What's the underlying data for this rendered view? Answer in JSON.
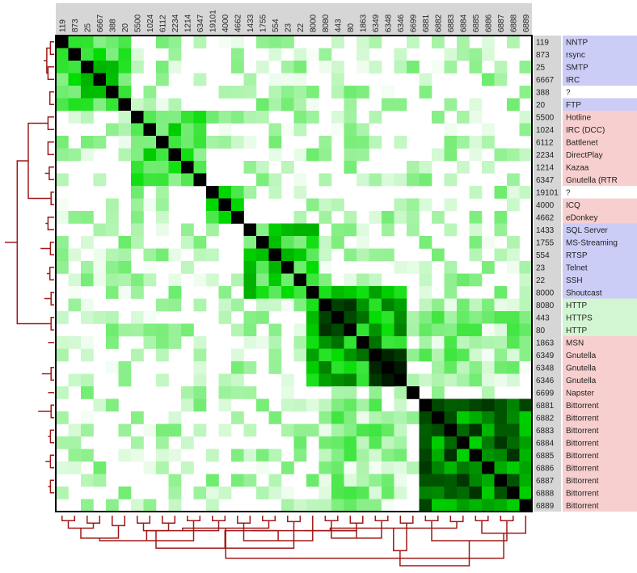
{
  "chart_data": {
    "type": "heatmap",
    "title": "",
    "xlabel": "",
    "ylabel": "",
    "colors": {
      "low": "#ffffff",
      "mid": "#00dd00",
      "high": "#000000",
      "dendrogram": "#a01818",
      "category_blue": "#cccdf6",
      "category_red": "#f8cfcf",
      "category_green": "#d2f5d2",
      "category_white": "#ffffff",
      "port_label_bg": "#d6d6d6"
    },
    "ports": [
      "119",
      "873",
      "25",
      "6667",
      "388",
      "20",
      "5500",
      "1024",
      "6112",
      "2234",
      "1214",
      "6347",
      "19101",
      "4000",
      "4662",
      "1433",
      "1755",
      "554",
      "23",
      "22",
      "8000",
      "8080",
      "443",
      "80",
      "1863",
      "6349",
      "6348",
      "6346",
      "6699",
      "6881",
      "6882",
      "6883",
      "6884",
      "6885",
      "6886",
      "6887",
      "6888",
      "6889"
    ],
    "protocols": [
      "NNTP",
      "rsync",
      "SMTP",
      "IRC",
      "?",
      "FTP",
      "Hotline",
      "IRC (DCC)",
      "Battlenet",
      "DirectPlay",
      "Kazaa",
      "Gnutella (RTR",
      "?",
      "ICQ",
      "eDonkey",
      "SQL Server",
      "MS-Streaming",
      "RTSP",
      "Telnet",
      "SSH",
      "Shoutcast",
      "HTTP",
      "HTTPS",
      "HTTP",
      "MSN",
      "Gnutella",
      "Gnutella",
      "Gnutella",
      "Napster",
      "Bittorrent",
      "Bittorrent",
      "Bittorrent",
      "Bittorrent",
      "Bittorrent",
      "Bittorrent",
      "Bittorrent",
      "Bittorrent",
      "Bittorrent"
    ],
    "protocol_category": [
      "blue",
      "blue",
      "blue",
      "blue",
      "white",
      "blue",
      "red",
      "red",
      "red",
      "red",
      "red",
      "red",
      "white",
      "red",
      "red",
      "blue",
      "blue",
      "blue",
      "blue",
      "blue",
      "blue",
      "green",
      "green",
      "green",
      "red",
      "red",
      "red",
      "red",
      "red",
      "red",
      "red",
      "red",
      "red",
      "red",
      "red",
      "red",
      "red",
      "red"
    ],
    "row_dendrogram": [
      [
        0,
        1,
        0.06
      ],
      [
        2,
        3,
        0.1
      ],
      [
        38,
        39,
        0.12
      ],
      [
        40,
        41,
        0.17
      ],
      [
        4,
        5,
        0.07
      ],
      [
        43,
        42,
        0.2
      ],
      [
        6,
        7,
        0.1
      ],
      [
        8,
        9,
        0.1
      ],
      [
        10,
        11,
        0.08
      ],
      [
        46,
        47,
        0.15
      ],
      [
        48,
        45,
        0.22
      ],
      [
        12,
        13,
        0.05
      ],
      [
        14,
        15,
        0.1
      ],
      [
        50,
        51,
        0.14
      ],
      [
        16,
        17,
        0.06
      ],
      [
        18,
        19,
        0.07
      ],
      [
        53,
        54,
        0.12
      ],
      [
        20,
        21,
        0.05
      ],
      [
        55,
        56,
        0.16
      ],
      [
        52,
        57,
        0.22
      ],
      [
        22,
        23,
        0.05
      ],
      [
        24,
        59,
        0.1
      ],
      [
        60,
        25,
        0.16
      ],
      [
        26,
        27,
        0.05
      ],
      [
        28,
        62,
        0.1
      ],
      [
        61,
        63,
        0.2
      ],
      [
        29,
        30,
        0.05
      ],
      [
        31,
        32,
        0.06
      ],
      [
        65,
        66,
        0.1
      ],
      [
        33,
        34,
        0.06
      ],
      [
        35,
        36,
        0.06
      ],
      [
        68,
        69,
        0.1
      ],
      [
        67,
        70,
        0.14
      ],
      [
        64,
        71,
        0.26
      ],
      [
        44,
        49,
        0.42
      ],
      [
        72,
        58,
        0.6
      ],
      [
        73,
        74,
        0.8
      ]
    ],
    "col_dendrogram": [
      [
        0,
        1,
        0.1
      ],
      [
        2,
        3,
        0.15
      ],
      [
        38,
        39,
        0.25
      ],
      [
        4,
        5,
        0.2
      ],
      [
        40,
        41,
        0.45
      ],
      [
        6,
        7,
        0.15
      ],
      [
        8,
        9,
        0.15
      ],
      [
        10,
        11,
        0.1
      ],
      [
        43,
        44,
        0.3
      ],
      [
        45,
        42,
        0.5
      ],
      [
        12,
        13,
        0.1
      ],
      [
        14,
        15,
        0.15
      ],
      [
        47,
        48,
        0.3
      ],
      [
        16,
        17,
        0.1
      ],
      [
        18,
        19,
        0.12
      ],
      [
        50,
        51,
        0.25
      ],
      [
        20,
        49,
        0.5
      ],
      [
        52,
        46,
        0.65
      ],
      [
        21,
        22,
        0.1
      ],
      [
        23,
        24,
        0.15
      ],
      [
        54,
        55,
        0.3
      ],
      [
        25,
        26,
        0.1
      ],
      [
        27,
        28,
        0.15
      ],
      [
        57,
        58,
        0.3
      ],
      [
        56,
        59,
        0.45
      ],
      [
        29,
        30,
        0.1
      ],
      [
        31,
        32,
        0.12
      ],
      [
        61,
        62,
        0.3
      ],
      [
        33,
        34,
        0.1
      ],
      [
        35,
        36,
        0.1
      ],
      [
        64,
        65,
        0.25
      ],
      [
        37,
        66,
        0.35
      ],
      [
        63,
        67,
        0.5
      ],
      [
        60,
        68,
        0.7
      ],
      [
        53,
        69,
        0.85
      ],
      [
        70,
        71,
        1.0
      ]
    ],
    "matrix_generation_note": ""
  }
}
